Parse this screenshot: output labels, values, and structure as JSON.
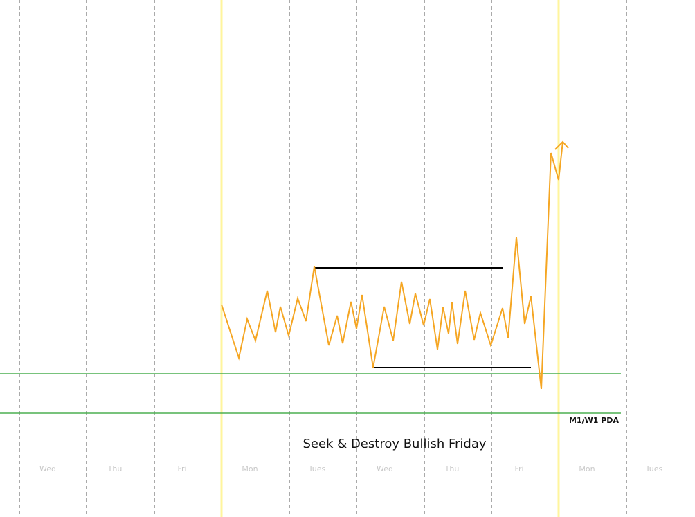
{
  "day_labels": [
    "Wed",
    "Thu",
    "Fri",
    "Mon",
    "Tues",
    "Wed",
    "Thu",
    "Fri",
    "Mon",
    "Tues"
  ],
  "annotation": "M1/W1 PDA",
  "title": "Seek & Destroy Bullish Friday"
}
